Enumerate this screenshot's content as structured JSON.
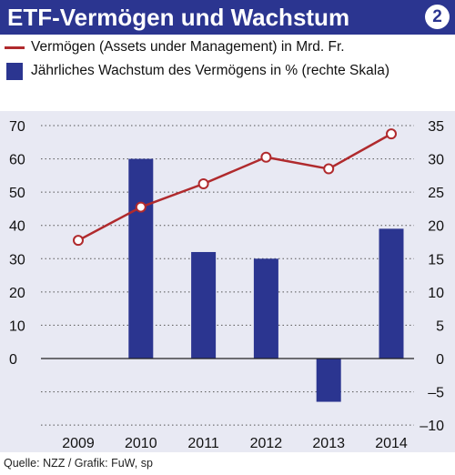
{
  "header": {
    "title": "ETF-Vermögen und Wachstum",
    "badge": "2"
  },
  "legend": {
    "line_label": "Vermögen (Assets under Management) in Mrd. Fr.",
    "bar_label": "Jährliches Wachstum des Vermögens in % (rechte Skala)"
  },
  "source": "Quelle: NZZ / Grafik: FuW, sp",
  "colors": {
    "header_bg": "#2b3590",
    "bar": "#2b3590",
    "line": "#b02a2d",
    "plot_bg": "#e8e9f3",
    "marker_fill": "#ffffff"
  },
  "chart_data": {
    "type": "bar+line",
    "title": "ETF-Vermögen und Wachstum",
    "categories": [
      "2009",
      "2010",
      "2011",
      "2012",
      "2013",
      "2014"
    ],
    "series": [
      {
        "name": "Vermögen (Assets under Management) in Mrd. Fr.",
        "type": "line",
        "axis": "left",
        "values": [
          35.5,
          45.5,
          52.5,
          60.5,
          57,
          67.5
        ]
      },
      {
        "name": "Jährliches Wachstum des Vermögens in % (rechte Skala)",
        "type": "bar",
        "axis": "right",
        "values": [
          null,
          30,
          16,
          15,
          -6.5,
          19.5
        ]
      }
    ],
    "left_axis": {
      "ticks": [
        "70",
        "60",
        "50",
        "40",
        "30",
        "20",
        "10",
        "0"
      ],
      "ylim": [
        0,
        70
      ]
    },
    "right_axis": {
      "ticks": [
        "35",
        "30",
        "25",
        "20",
        "15",
        "10",
        "5",
        "0",
        "–5",
        "–10"
      ],
      "ylim": [
        -10,
        35
      ]
    },
    "grid": "dotted horizontal"
  }
}
